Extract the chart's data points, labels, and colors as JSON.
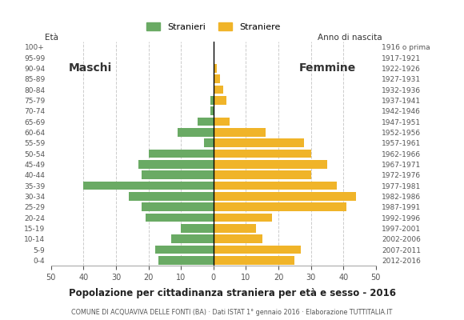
{
  "age_groups": [
    "0-4",
    "5-9",
    "10-14",
    "15-19",
    "20-24",
    "25-29",
    "30-34",
    "35-39",
    "40-44",
    "45-49",
    "50-54",
    "55-59",
    "60-64",
    "65-69",
    "70-74",
    "75-79",
    "80-84",
    "85-89",
    "90-94",
    "95-99",
    "100+"
  ],
  "birth_years": [
    "2012-2016",
    "2007-2011",
    "2002-2006",
    "1997-2001",
    "1992-1996",
    "1987-1991",
    "1982-1986",
    "1977-1981",
    "1972-1976",
    "1967-1971",
    "1962-1966",
    "1957-1961",
    "1952-1956",
    "1947-1951",
    "1942-1946",
    "1937-1941",
    "1932-1936",
    "1927-1931",
    "1922-1926",
    "1917-1921",
    "1916 o prima"
  ],
  "males": [
    17,
    18,
    13,
    10,
    21,
    22,
    26,
    40,
    22,
    23,
    20,
    3,
    11,
    5,
    1,
    1,
    0,
    0,
    0,
    0,
    0
  ],
  "females": [
    25,
    27,
    15,
    13,
    18,
    41,
    44,
    38,
    30,
    35,
    30,
    28,
    16,
    5,
    0,
    4,
    3,
    2,
    1,
    0,
    0
  ],
  "male_color": "#6aaa64",
  "female_color": "#f0b429",
  "title": "Popolazione per cittadinanza straniera per età e sesso - 2016",
  "subtitle": "COMUNE DI ACQUAVIVA DELLE FONTI (BA) · Dati ISTAT 1° gennaio 2016 · Elaborazione TUTTITALIA.IT",
  "legend_male": "Stranieri",
  "legend_female": "Straniere",
  "label_left": "Maschi",
  "label_right": "Femmine",
  "ylabel_left": "Età",
  "ylabel_right": "Anno di nascita",
  "xlim": 50,
  "background_color": "#ffffff",
  "grid_color": "#cccccc"
}
